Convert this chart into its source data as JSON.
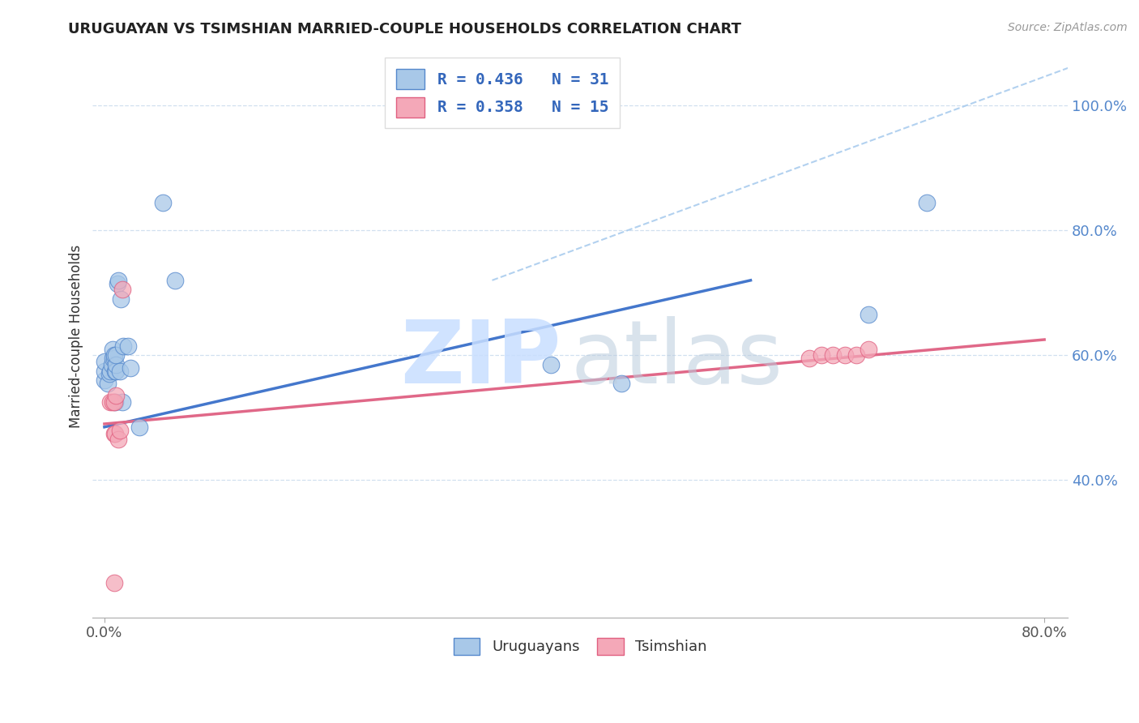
{
  "title": "URUGUAYAN VS TSIMSHIAN MARRIED-COUPLE HOUSEHOLDS CORRELATION CHART",
  "source": "Source: ZipAtlas.com",
  "ylabel_label": "Married-couple Households",
  "xlim": [
    -0.01,
    0.82
  ],
  "ylim": [
    0.18,
    1.08
  ],
  "xtick_positions": [
    0.0,
    0.8
  ],
  "xtick_labels": [
    "0.0%",
    "80.0%"
  ],
  "ytick_positions": [
    0.4,
    0.6,
    0.8,
    1.0
  ],
  "ytick_labels": [
    "40.0%",
    "60.0%",
    "80.0%",
    "100.0%"
  ],
  "legend_label1": "R = 0.436   N = 31",
  "legend_label2": "R = 0.358   N = 15",
  "legend_xlabel": "Uruguayans",
  "legend_tlabel": "Tsimshian",
  "blue_color": "#A8C8E8",
  "pink_color": "#F4A8B8",
  "blue_edge_color": "#5588CC",
  "pink_edge_color": "#E06080",
  "blue_line_color": "#4477CC",
  "pink_line_color": "#E06888",
  "diag_line_color": "#AACCEE",
  "blue_scatter_x": [
    0.0,
    0.0,
    0.0,
    0.003,
    0.004,
    0.005,
    0.006,
    0.007,
    0.007,
    0.008,
    0.008,
    0.009,
    0.009,
    0.01,
    0.01,
    0.01,
    0.011,
    0.012,
    0.013,
    0.014,
    0.015,
    0.016,
    0.02,
    0.022,
    0.03,
    0.05,
    0.06,
    0.38,
    0.44,
    0.65,
    0.7
  ],
  "blue_scatter_y": [
    0.56,
    0.575,
    0.59,
    0.555,
    0.57,
    0.575,
    0.585,
    0.595,
    0.61,
    0.595,
    0.6,
    0.525,
    0.575,
    0.575,
    0.585,
    0.6,
    0.715,
    0.72,
    0.575,
    0.69,
    0.525,
    0.615,
    0.615,
    0.58,
    0.485,
    0.845,
    0.72,
    0.585,
    0.555,
    0.665,
    0.845
  ],
  "pink_scatter_x": [
    0.005,
    0.007,
    0.008,
    0.008,
    0.009,
    0.01,
    0.012,
    0.013,
    0.015,
    0.6,
    0.61,
    0.62,
    0.63,
    0.64,
    0.65
  ],
  "pink_scatter_y": [
    0.525,
    0.525,
    0.525,
    0.475,
    0.475,
    0.535,
    0.465,
    0.48,
    0.705,
    0.595,
    0.6,
    0.6,
    0.6,
    0.6,
    0.61
  ],
  "pink_scatter_x_low": [
    0.008
  ],
  "pink_scatter_y_low": [
    0.235
  ],
  "blue_line_x": [
    0.0,
    0.55
  ],
  "blue_line_y": [
    0.485,
    0.72
  ],
  "pink_line_x": [
    0.0,
    0.8
  ],
  "pink_line_y": [
    0.49,
    0.625
  ],
  "diag_line_x": [
    0.33,
    0.82
  ],
  "diag_line_y": [
    0.72,
    1.06
  ]
}
